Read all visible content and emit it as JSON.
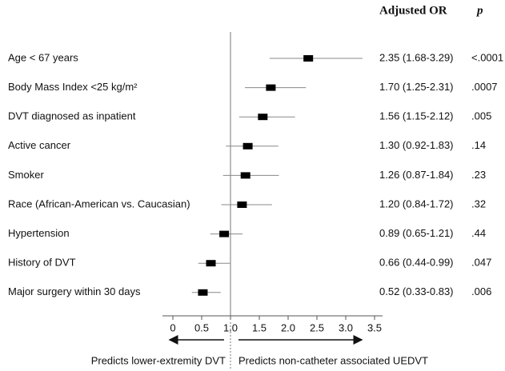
{
  "chart_data": {
    "type": "forest",
    "column_headers": [
      "Adjusted OR",
      "p"
    ],
    "categories": [
      "Age < 67 years",
      "Body Mass Index <25 kg/m²",
      "DVT diagnosed as inpatient",
      "Active cancer",
      "Smoker",
      "Race (African-American vs. Caucasian)",
      "Hypertension",
      "History of DVT",
      "Major surgery within 30 days"
    ],
    "values": [
      2.35,
      1.7,
      1.56,
      1.3,
      1.26,
      1.2,
      0.89,
      0.66,
      0.52
    ],
    "ci_low": [
      1.68,
      1.25,
      1.15,
      0.92,
      0.87,
      0.84,
      0.65,
      0.44,
      0.33
    ],
    "ci_high": [
      3.29,
      2.31,
      2.12,
      1.83,
      1.84,
      1.72,
      1.21,
      0.99,
      0.83
    ],
    "value_labels": [
      "2.35 (1.68-3.29)",
      "1.70 (1.25-2.31)",
      "1.56 (1.15-2.12)",
      "1.30 (0.92-1.83)",
      "1.26 (0.87-1.84)",
      "1.20 (0.84-1.72)",
      "0.89 (0.65-1.21)",
      "0.66 (0.44-0.99)",
      "0.52 (0.33-0.83)"
    ],
    "p_values": [
      "<.0001",
      ".0007",
      ".005",
      ".14",
      ".23",
      ".32",
      ".44",
      ".047",
      ".006"
    ],
    "xlim": [
      0,
      3.5
    ],
    "xticks": [
      0,
      0.5,
      {
        "value": 1,
        "label": "1.0"
      },
      1.5,
      {
        "value": 2,
        "label": "2.0"
      },
      2.5,
      {
        "value": 3,
        "label": "3.0"
      },
      3.5
    ],
    "reference_line": 1,
    "color": "#000000",
    "annotations": [
      "Predicts lower-extremity DVT",
      "Predicts non-catheter associated UEDVT"
    ]
  }
}
